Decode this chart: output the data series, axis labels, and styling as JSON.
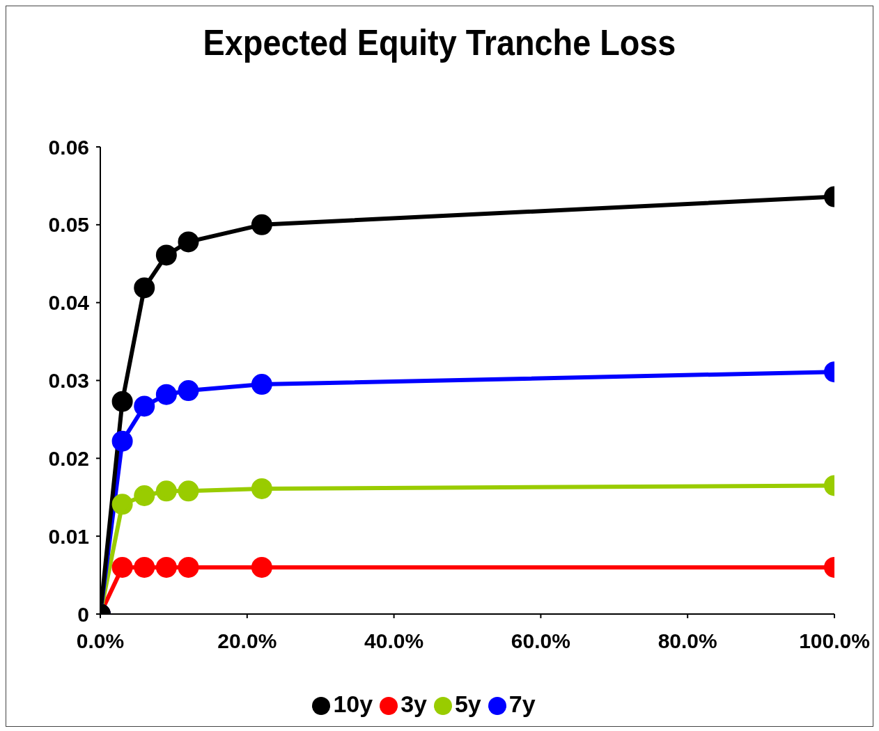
{
  "chart_data": {
    "type": "line",
    "title": "Expected Equity Tranche Loss",
    "x": [
      0,
      3,
      6,
      9,
      12,
      22,
      100
    ],
    "xlim": [
      0,
      100
    ],
    "xticks": [
      {
        "value": 0,
        "label": "0.0%"
      },
      {
        "value": 20,
        "label": "20.0%"
      },
      {
        "value": 40,
        "label": "40.0%"
      },
      {
        "value": 60,
        "label": "60.0%"
      },
      {
        "value": 80,
        "label": "80.0%"
      },
      {
        "value": 100,
        "label": "100.0%"
      }
    ],
    "ylim": [
      0,
      0.06
    ],
    "yticks": [
      0,
      0.01,
      0.02,
      0.03,
      0.04,
      0.05,
      0.06
    ],
    "series": [
      {
        "name": "3y",
        "color": "#ff0000",
        "values": [
          0,
          0.006,
          0.006,
          0.006,
          0.006,
          0.006,
          0.006
        ]
      },
      {
        "name": "5y",
        "color": "#99cc00",
        "values": [
          0,
          0.0141,
          0.0152,
          0.0158,
          0.0158,
          0.0161,
          0.0165
        ]
      },
      {
        "name": "7y",
        "color": "#0000ff",
        "values": [
          0,
          0.0222,
          0.0267,
          0.0282,
          0.0287,
          0.0295,
          0.0311
        ]
      },
      {
        "name": "10y",
        "color": "#000000",
        "values": [
          0,
          0.0273,
          0.0419,
          0.0461,
          0.0478,
          0.05,
          0.0536
        ]
      }
    ],
    "grid": false,
    "legend": "bottom",
    "marker": "circle",
    "line_style": "solid"
  }
}
